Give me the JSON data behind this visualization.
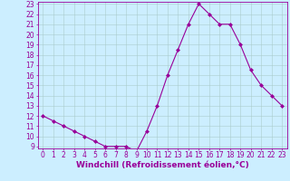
{
  "x": [
    0,
    1,
    2,
    3,
    4,
    5,
    6,
    7,
    8,
    9,
    10,
    11,
    12,
    13,
    14,
    15,
    16,
    17,
    18,
    19,
    20,
    21,
    22,
    23
  ],
  "y": [
    12,
    11.5,
    11,
    10.5,
    10,
    9.5,
    9,
    9,
    9,
    8.5,
    10.5,
    13,
    16,
    18.5,
    21,
    23,
    22,
    21,
    21,
    19,
    16.5,
    15,
    14,
    13
  ],
  "line_color": "#990099",
  "marker": "D",
  "marker_size": 2,
  "bg_color": "#cceeff",
  "grid_color": "#aacccc",
  "xlabel": "Windchill (Refroidissement éolien,°C)",
  "xlabel_color": "#990099",
  "tick_color": "#990099",
  "ylim_min": 9,
  "ylim_max": 23,
  "xlim_min": -0.5,
  "xlim_max": 23.5,
  "yticks": [
    9,
    10,
    11,
    12,
    13,
    14,
    15,
    16,
    17,
    18,
    19,
    20,
    21,
    22,
    23
  ],
  "xticks": [
    0,
    1,
    2,
    3,
    4,
    5,
    6,
    7,
    8,
    9,
    10,
    11,
    12,
    13,
    14,
    15,
    16,
    17,
    18,
    19,
    20,
    21,
    22,
    23
  ],
  "axis_label_fontsize": 6.5,
  "tick_fontsize": 5.5,
  "linewidth": 0.8
}
